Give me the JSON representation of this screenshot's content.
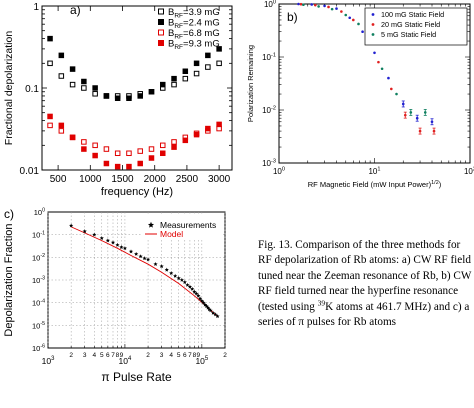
{
  "caption": {
    "part1": "Fig. 13. Comparison of the three methods for RF depolarization of Rb atoms: a) CW RF field tuned near the Zeeman resonance of Rb, b) CW RF field turned near the hyperfine resonance (tested using ",
    "sup": "39",
    "part2": "K atoms at 461.7 MHz) and c) a series of π pulses for Rb atoms"
  },
  "chart_data": [
    {
      "panel": "a)",
      "type": "scatter",
      "xlabel": "frequency (Hz)",
      "ylabel": "Fractional depolarization",
      "xscale": "linear",
      "yscale": "log",
      "xlim": [
        250,
        3200
      ],
      "ylim": [
        0.01,
        1
      ],
      "xticks": [
        "500",
        "1000",
        "1500",
        "2000",
        "2500",
        "3000"
      ],
      "yticks": [
        "0.01",
        "0.1",
        "1"
      ],
      "legend_position": "top-right",
      "series": [
        {
          "name": "B_RF=3.9 mG",
          "marker": "open-square",
          "color": "#000000",
          "x": [
            375,
            550,
            725,
            900,
            1075,
            1250,
            1425,
            1600,
            1775,
            1950,
            2125,
            2300,
            2475,
            2650,
            2825,
            3000
          ],
          "y": [
            0.2,
            0.14,
            0.11,
            0.1,
            0.085,
            0.08,
            0.08,
            0.08,
            0.085,
            0.09,
            0.1,
            0.11,
            0.13,
            0.15,
            0.18,
            0.2
          ]
        },
        {
          "name": "B_RF=2.4 mG",
          "marker": "filled-square",
          "color": "#000000",
          "x": [
            375,
            550,
            725,
            900,
            1075,
            1250,
            1425,
            1600,
            1775,
            1950,
            2125,
            2300,
            2475,
            2650,
            2825,
            3000
          ],
          "y": [
            0.4,
            0.25,
            0.17,
            0.12,
            0.1,
            0.08,
            0.075,
            0.075,
            0.08,
            0.09,
            0.11,
            0.13,
            0.16,
            0.2,
            0.25,
            0.3
          ]
        },
        {
          "name": "B_RF=6.8 mG",
          "marker": "open-square",
          "color": "#e00000",
          "x": [
            375,
            550,
            725,
            900,
            1075,
            1250,
            1425,
            1600,
            1775,
            1950,
            2125,
            2300,
            2475,
            2650,
            2825,
            3000
          ],
          "y": [
            0.035,
            0.03,
            0.025,
            0.022,
            0.02,
            0.018,
            0.016,
            0.016,
            0.017,
            0.018,
            0.02,
            0.022,
            0.025,
            0.028,
            0.03,
            0.032
          ]
        },
        {
          "name": "B_RF=9.3 mG",
          "marker": "filled-square",
          "color": "#e00000",
          "x": [
            375,
            550,
            725,
            900,
            1075,
            1250,
            1425,
            1600,
            1775,
            1950,
            2125,
            2300,
            2475,
            2650,
            2825,
            3000
          ],
          "y": [
            0.045,
            0.035,
            0.025,
            0.018,
            0.015,
            0.012,
            0.011,
            0.011,
            0.012,
            0.014,
            0.016,
            0.019,
            0.023,
            0.027,
            0.032,
            0.036
          ]
        }
      ]
    },
    {
      "panel": "b)",
      "type": "scatter",
      "xlabel": "RF Magnetic Field (mW Input Power)",
      "xlabel_sup": "1/2",
      "xlabel_close": ")",
      "ylabel": "Polarization Remaining",
      "xscale": "log",
      "yscale": "log",
      "xlim": [
        1,
        100
      ],
      "ylim": [
        0.001,
        1
      ],
      "legend_position": "top-right",
      "series": [
        {
          "name": "100 mG Static Field",
          "marker": "point",
          "color": "#2020d0",
          "x": [
            1.6,
            2.2,
            3.0,
            4.0,
            5.5,
            7.5,
            10,
            14,
            20,
            28,
            40
          ],
          "y": [
            1.0,
            0.98,
            0.92,
            0.82,
            0.55,
            0.3,
            0.12,
            0.04,
            0.013,
            0.007,
            0.006
          ]
        },
        {
          "name": "20 mG Static Field",
          "marker": "point",
          "color": "#e02020",
          "x": [
            1.7,
            2.4,
            3.3,
            4.5,
            6.0,
            8.2,
            11,
            15,
            21,
            30,
            42
          ],
          "y": [
            0.99,
            0.95,
            0.88,
            0.72,
            0.5,
            0.22,
            0.08,
            0.025,
            0.008,
            0.004,
            0.004
          ]
        },
        {
          "name": "5 mG Static Field",
          "marker": "point",
          "color": "#108060",
          "x": [
            1.8,
            2.6,
            3.6,
            5.0,
            6.8,
            9.0,
            12,
            17,
            24,
            34
          ],
          "y": [
            0.97,
            0.9,
            0.8,
            0.62,
            0.42,
            0.18,
            0.06,
            0.02,
            0.009,
            0.009
          ]
        }
      ]
    },
    {
      "panel": "c)",
      "type": "line",
      "xlabel": "π Pulse Rate",
      "ylabel": "Depolarization Fraction",
      "xscale": "log",
      "yscale": "log",
      "xlim": [
        1000,
        200000
      ],
      "ylim": [
        1e-06,
        1
      ],
      "xticks_major": [
        "10",
        "10",
        "10"
      ],
      "xticks_major_sup": [
        "3",
        "4",
        "5"
      ],
      "xticks_minor": [
        "2",
        "3",
        "4",
        "5",
        "6",
        "7",
        "8",
        "9",
        "2",
        "3",
        "4",
        "5",
        "6",
        "7",
        "8",
        "9",
        "2"
      ],
      "yticks": [
        "10",
        "10",
        "10",
        "10",
        "10",
        "10",
        "10"
      ],
      "yticks_sup": [
        "-6",
        "-5",
        "-4",
        "-3",
        "-2",
        "-1",
        "0"
      ],
      "legend_position": "top-right",
      "series": [
        {
          "name": "Measurements",
          "marker": "star",
          "color": "#000000",
          "x": [
            2000,
            3000,
            4000,
            5000,
            6000,
            7000,
            8000,
            9000,
            10000,
            12000,
            14000,
            16000,
            18000,
            20000,
            25000,
            30000,
            35000,
            40000,
            45000,
            50000,
            55000,
            60000,
            65000,
            70000,
            75000,
            80000,
            85000,
            90000,
            95000,
            100000,
            105000,
            110000,
            115000,
            120000,
            125000,
            130000,
            140000,
            150000,
            160000
          ],
          "y": [
            0.25,
            0.14,
            0.1,
            0.07,
            0.055,
            0.045,
            0.035,
            0.028,
            0.025,
            0.018,
            0.014,
            0.011,
            0.009,
            0.008,
            0.005,
            0.004,
            0.0028,
            0.002,
            0.0015,
            0.0012,
            0.001,
            0.0008,
            0.0006,
            0.0005,
            0.0004,
            0.0003,
            0.00025,
            0.0002,
            0.00015,
            0.00012,
            0.0001,
            8e-05,
            7e-05,
            6e-05,
            5e-05,
            4.5e-05,
            3.5e-05,
            3e-05,
            2.5e-05
          ]
        },
        {
          "name": "Model",
          "marker": "line",
          "color": "#e00000",
          "x": [
            2000,
            3000,
            5000,
            8000,
            12000,
            20000,
            30000,
            50000,
            80000,
            120000,
            160000
          ],
          "y": [
            0.22,
            0.12,
            0.055,
            0.025,
            0.012,
            0.005,
            0.0022,
            0.0007,
            0.0002,
            6e-05,
            2.5e-05
          ]
        }
      ]
    }
  ]
}
